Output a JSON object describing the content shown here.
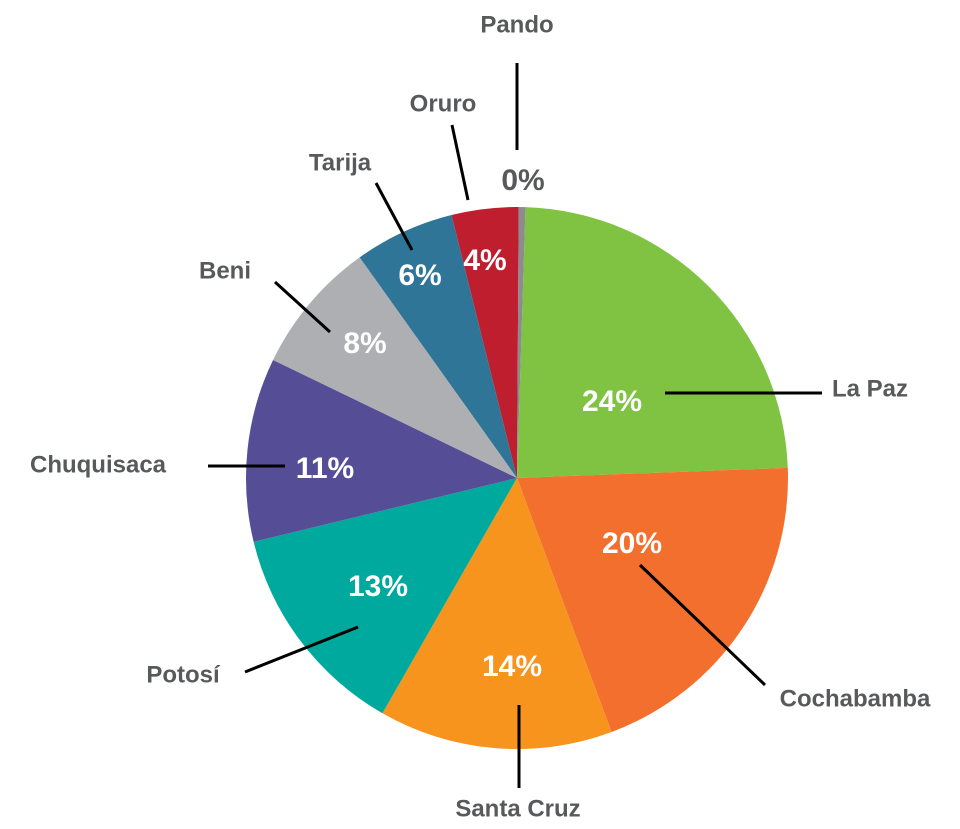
{
  "chart_data": {
    "type": "pie",
    "categories": [
      "La Paz",
      "Cochabamba",
      "Santa Cruz",
      "Potosí",
      "Chuquisaca",
      "Beni",
      "Tarija",
      "Oruro",
      "Pando"
    ],
    "values": [
      24,
      20,
      14,
      13,
      11,
      8,
      6,
      4,
      0.4
    ],
    "value_labels": [
      "24%",
      "20%",
      "14%",
      "13%",
      "11%",
      "8%",
      "6%",
      "4%",
      "0%"
    ],
    "colors": [
      "#80c342",
      "#f36f2d",
      "#f7941d",
      "#00a99d",
      "#554e97",
      "#aeafb2",
      "#2e7597",
      "#be1e2d",
      "#8c8c8e"
    ]
  }
}
